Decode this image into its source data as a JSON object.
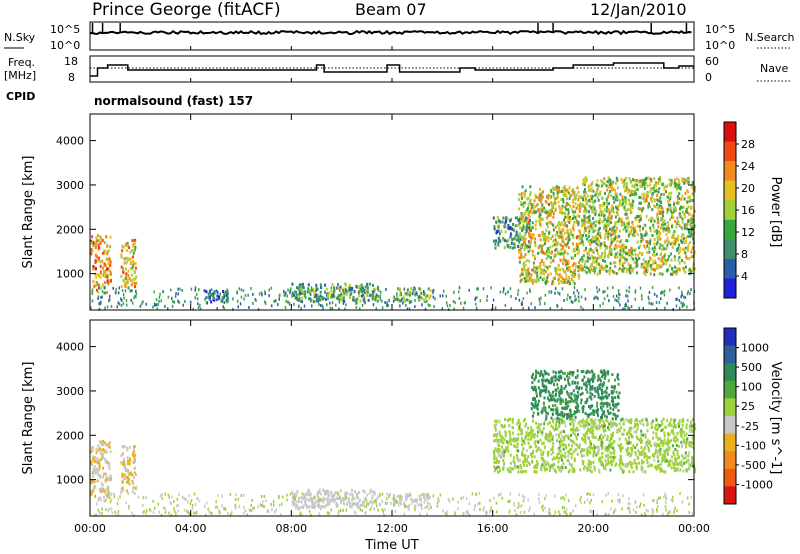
{
  "header": {
    "station": "Prince George (fitACF)",
    "beam": "Beam 07",
    "date": "12/Jan/2010"
  },
  "panels": {
    "nsky": {
      "label": "N.Sky",
      "tick_top": "10^5",
      "tick_bottom": "10^0",
      "right_label": "N.Search",
      "right_tick_top": "10^5",
      "right_tick_bottom": "10^0"
    },
    "freq": {
      "label_line1": "Freq.",
      "label_line2": "[MHz]",
      "tick_top": "18",
      "tick_bottom": "8",
      "right_label": "Nave",
      "right_tick_top": "60",
      "right_tick_bottom": "0"
    },
    "cpid": {
      "label": "CPID",
      "value": "normalsound (fast) 157"
    }
  },
  "colors": {
    "power": [
      "#1f1fd6",
      "#2a5ea8",
      "#3f8f6a",
      "#3aa63f",
      "#9fd23a",
      "#e6c020",
      "#f08a1e",
      "#ee4a14",
      "#d80f0f"
    ],
    "velocity": [
      "#1e2fb8",
      "#2f5f9c",
      "#2f8a5a",
      "#4ea83e",
      "#9fd23a",
      "#c8c8c8",
      "#e8b020",
      "#f08a1e",
      "#ee5a14",
      "#d81414"
    ],
    "line": "#000000"
  },
  "chart_data": [
    {
      "type": "heatmap",
      "name": "power",
      "ylabel": "Slant Range [km]",
      "ylim": [
        180,
        4600
      ],
      "yticks": [
        "1000",
        "2000",
        "3000",
        "4000"
      ],
      "colorbar_label": "Power [dB]",
      "colorbar_ticks": [
        "4",
        "8",
        "12",
        "16",
        "20",
        "24",
        "28"
      ],
      "colorbar_range": [
        0,
        32
      ],
      "xlim": [
        0,
        24
      ],
      "echo_regions": [
        {
          "t0": 0.0,
          "t1": 0.8,
          "r0": 600,
          "r1": 1900,
          "v": 22
        },
        {
          "t0": 1.2,
          "t1": 1.8,
          "r0": 700,
          "r1": 1800,
          "v": 20
        },
        {
          "t0": 4.5,
          "t1": 5.5,
          "r0": 350,
          "r1": 650,
          "v": 6
        },
        {
          "t0": 8.0,
          "t1": 11.5,
          "r0": 400,
          "r1": 800,
          "v": 12
        },
        {
          "t0": 12.0,
          "t1": 13.5,
          "r0": 400,
          "r1": 700,
          "v": 14
        },
        {
          "t0": 16.0,
          "t1": 17.5,
          "r0": 1600,
          "r1": 2300,
          "v": 10
        },
        {
          "t0": 17.0,
          "t1": 19.5,
          "r0": 800,
          "r1": 3000,
          "v": 18
        },
        {
          "t0": 19.5,
          "t1": 24.0,
          "r0": 1000,
          "r1": 3200,
          "v": 16
        }
      ]
    },
    {
      "type": "heatmap",
      "name": "velocity",
      "ylabel": "Slant Range [km]",
      "ylim": [
        180,
        4600
      ],
      "yticks": [
        "1000",
        "2000",
        "3000",
        "4000"
      ],
      "colorbar_label": "Velocity [m s^-1]",
      "colorbar_ticks": [
        "1000",
        "500",
        "100",
        "25",
        "-25",
        "-100",
        "-500",
        "-1000"
      ],
      "xlim": [
        0,
        24
      ],
      "xticks": [
        "00:00",
        "04:00",
        "08:00",
        "12:00",
        "16:00",
        "20:00",
        "00:00"
      ],
      "xlabel": "Time UT",
      "echo_regions": [
        {
          "t0": 0.0,
          "t1": 0.8,
          "r0": 600,
          "r1": 1900,
          "v": -100
        },
        {
          "t0": 1.2,
          "t1": 1.8,
          "r0": 700,
          "r1": 1800,
          "v": -100
        },
        {
          "t0": 8.0,
          "t1": 11.5,
          "r0": 400,
          "r1": 800,
          "v": -60
        },
        {
          "t0": 12.0,
          "t1": 13.5,
          "r0": 400,
          "r1": 700,
          "v": -60
        },
        {
          "t0": 16.0,
          "t1": 24.0,
          "r0": 1200,
          "r1": 2400,
          "v": 0
        },
        {
          "t0": 17.5,
          "t1": 21.0,
          "r0": 2400,
          "r1": 3500,
          "v": 120
        }
      ]
    }
  ]
}
